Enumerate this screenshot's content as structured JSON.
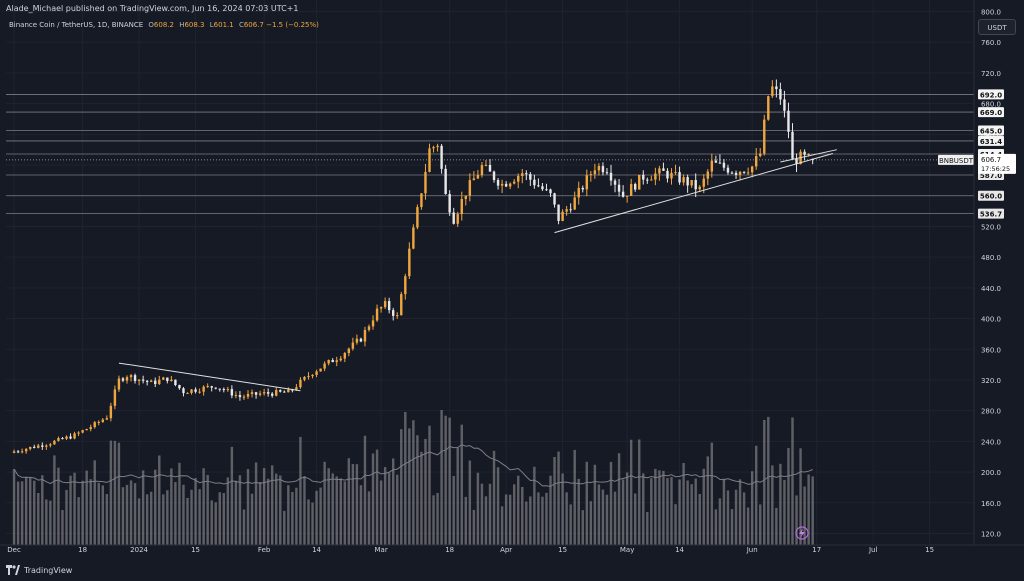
{
  "header": {
    "text": "Alade_Michael published on TradingView.com, Jun 16, 2024 07:03 UTC+1"
  },
  "legend": {
    "symbol": "Binance Coin / TetherUS, 1D, BINANCE",
    "o_label": "O",
    "o_value": "608.2",
    "h_label": "H",
    "h_value": "608.3",
    "l_label": "L",
    "l_value": "601.1",
    "c_label": "C",
    "c_value": "606.7",
    "change": "−1.5 (−0.25%)"
  },
  "currency": "USDT",
  "footer": {
    "brand": "TradingView"
  },
  "colors": {
    "background": "#161a25",
    "up": "#f0a640",
    "down": "#e8e8e8",
    "volume": "#9a9a9a",
    "level_line": "#7a7d86",
    "text": "#d1d4dc"
  },
  "chart_data": {
    "type": "candlestick",
    "title": "Binance Coin / TetherUS, 1D, BINANCE",
    "y_axis": {
      "scale": "linear",
      "ylim": [
        105,
        815
      ],
      "ticks": [
        800,
        760,
        720,
        680,
        640,
        600,
        560,
        520,
        480,
        440,
        400,
        360,
        320,
        280,
        240,
        200,
        160,
        120
      ],
      "tick_labels": [
        "800.0",
        "760.0",
        "720.0",
        "680.0",
        "640.0",
        "600.0",
        "560.0",
        "520.0",
        "480.0",
        "440.0",
        "400.0",
        "360.0",
        "320.0",
        "280.0",
        "240.0",
        "200.0",
        "160.0",
        "120.0"
      ]
    },
    "x_axis": {
      "range": [
        "2023-11-29",
        "2024-07-26"
      ],
      "ticks": [
        {
          "date": "2023-12-01",
          "label": "Dec"
        },
        {
          "date": "2023-12-18",
          "label": "18"
        },
        {
          "date": "2024-01-01",
          "label": "2024"
        },
        {
          "date": "2024-01-15",
          "label": "15"
        },
        {
          "date": "2024-02-01",
          "label": "Feb"
        },
        {
          "date": "2024-02-14",
          "label": "14"
        },
        {
          "date": "2024-03-01",
          "label": "Mar"
        },
        {
          "date": "2024-03-18",
          "label": "18"
        },
        {
          "date": "2024-04-01",
          "label": "Apr"
        },
        {
          "date": "2024-04-15",
          "label": "15"
        },
        {
          "date": "2024-05-01",
          "label": "May"
        },
        {
          "date": "2024-05-14",
          "label": "14"
        },
        {
          "date": "2024-06-01",
          "label": "Jun"
        },
        {
          "date": "2024-06-17",
          "label": "17"
        },
        {
          "date": "2024-07-01",
          "label": "Jul"
        },
        {
          "date": "2024-07-15",
          "label": "15"
        }
      ]
    },
    "price_series": {
      "start_date": "2023-12-01",
      "interval": "1D",
      "anchors": [
        {
          "date": "2023-12-01",
          "close": 227
        },
        {
          "date": "2023-12-10",
          "close": 238
        },
        {
          "date": "2023-12-16",
          "close": 248
        },
        {
          "date": "2023-12-21",
          "close": 262
        },
        {
          "date": "2023-12-24",
          "close": 272
        },
        {
          "date": "2023-12-27",
          "close": 320
        },
        {
          "date": "2023-12-29",
          "close": 326
        },
        {
          "date": "2024-01-04",
          "close": 316
        },
        {
          "date": "2024-01-08",
          "close": 322
        },
        {
          "date": "2024-01-12",
          "close": 305
        },
        {
          "date": "2024-01-20",
          "close": 312
        },
        {
          "date": "2024-01-26",
          "close": 298
        },
        {
          "date": "2024-01-31",
          "close": 302
        },
        {
          "date": "2024-02-07",
          "close": 304
        },
        {
          "date": "2024-02-13",
          "close": 330
        },
        {
          "date": "2024-02-20",
          "close": 352
        },
        {
          "date": "2024-02-25",
          "close": 374
        },
        {
          "date": "2024-02-29",
          "close": 410
        },
        {
          "date": "2024-03-02",
          "close": 418
        },
        {
          "date": "2024-03-05",
          "close": 402
        },
        {
          "date": "2024-03-08",
          "close": 488
        },
        {
          "date": "2024-03-10",
          "close": 540
        },
        {
          "date": "2024-03-13",
          "close": 620
        },
        {
          "date": "2024-03-15",
          "close": 628
        },
        {
          "date": "2024-03-17",
          "close": 560
        },
        {
          "date": "2024-03-19",
          "close": 530
        },
        {
          "date": "2024-03-22",
          "close": 565
        },
        {
          "date": "2024-03-26",
          "close": 598
        },
        {
          "date": "2024-03-31",
          "close": 575
        },
        {
          "date": "2024-04-05",
          "close": 590
        },
        {
          "date": "2024-04-12",
          "close": 560
        },
        {
          "date": "2024-04-14",
          "close": 530
        },
        {
          "date": "2024-04-18",
          "close": 555
        },
        {
          "date": "2024-04-23",
          "close": 598
        },
        {
          "date": "2024-04-26",
          "close": 596
        },
        {
          "date": "2024-04-30",
          "close": 560
        },
        {
          "date": "2024-05-05",
          "close": 585
        },
        {
          "date": "2024-05-10",
          "close": 590
        },
        {
          "date": "2024-05-15",
          "close": 580
        },
        {
          "date": "2024-05-19",
          "close": 568
        },
        {
          "date": "2024-05-22",
          "close": 602
        },
        {
          "date": "2024-05-28",
          "close": 592
        },
        {
          "date": "2024-06-01",
          "close": 598
        },
        {
          "date": "2024-06-03",
          "close": 615
        },
        {
          "date": "2024-06-05",
          "close": 690
        },
        {
          "date": "2024-06-06",
          "close": 700
        },
        {
          "date": "2024-06-08",
          "close": 688
        },
        {
          "date": "2024-06-10",
          "close": 645
        },
        {
          "date": "2024-06-11",
          "close": 605
        },
        {
          "date": "2024-06-13",
          "close": 610
        },
        {
          "date": "2024-06-15",
          "close": 608
        },
        {
          "date": "2024-06-16",
          "close": 606.7
        }
      ]
    },
    "volume": {
      "shown": true,
      "moving_average": true
    },
    "horizontal_levels": [
      {
        "value": 692.0,
        "label": "692.0"
      },
      {
        "value": 669.0,
        "label": "669.0"
      },
      {
        "value": 645.0,
        "label": "645.0"
      },
      {
        "value": 631.4,
        "label": "631.4"
      },
      {
        "value": 614.4,
        "label": "614.4"
      },
      {
        "value": 587.0,
        "label": "587.0"
      },
      {
        "value": 560.0,
        "label": "560.0"
      },
      {
        "value": 536.7,
        "label": "536.7"
      }
    ],
    "current_price": {
      "value": 606.7,
      "symbol": "BNBUSDT",
      "label": "606.7",
      "countdown": "17:56:25"
    },
    "trendlines": [
      {
        "from": {
          "date": "2023-12-27",
          "price": 342
        },
        "to": {
          "date": "2024-02-10",
          "price": 306
        }
      },
      {
        "from": {
          "date": "2024-04-13",
          "price": 512
        },
        "to": {
          "date": "2024-06-21",
          "price": 615
        }
      },
      {
        "from": {
          "date": "2024-06-08",
          "price": 604
        },
        "to": {
          "date": "2024-06-22",
          "price": 620
        }
      }
    ],
    "grid": true
  }
}
